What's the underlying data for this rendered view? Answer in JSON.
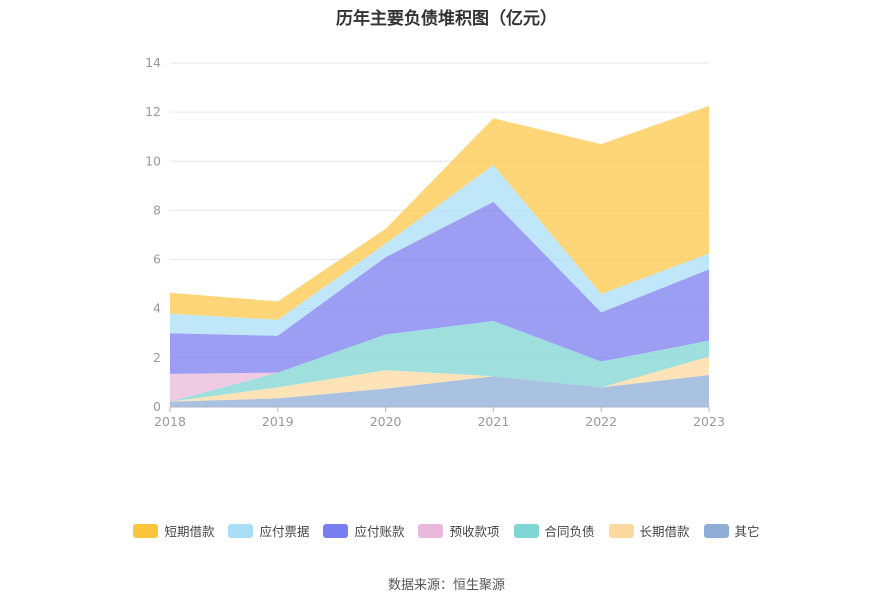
{
  "chart_data": {
    "type": "area",
    "stacked": true,
    "title": "历年主要负债堆积图（亿元）",
    "categories": [
      "2018",
      "2019",
      "2020",
      "2021",
      "2022",
      "2023"
    ],
    "ylim": [
      0,
      14
    ],
    "yticks": [
      "0",
      "2",
      "4",
      "6",
      "8",
      "10",
      "12",
      "14"
    ],
    "grid": true,
    "legend_position": "bottom",
    "series": [
      {
        "name": "其它",
        "color": "#8eaed8",
        "values": [
          0.22,
          0.35,
          0.75,
          1.25,
          0.8,
          1.3
        ]
      },
      {
        "name": "长期借款",
        "color": "#fdd9a0",
        "values": [
          0.0,
          0.45,
          0.75,
          0.0,
          0.0,
          0.75
        ]
      },
      {
        "name": "合同负债",
        "color": "#7fd6d4",
        "values": [
          0.0,
          0.6,
          1.45,
          2.25,
          1.05,
          0.65
        ]
      },
      {
        "name": "预收款项",
        "color": "#eab8da",
        "values": [
          1.13,
          0.0,
          0.0,
          0.0,
          0.0,
          0.0
        ]
      },
      {
        "name": "应付账款",
        "color": "#7b7ef0",
        "values": [
          1.65,
          1.5,
          3.15,
          4.85,
          2.0,
          2.9
        ]
      },
      {
        "name": "应付票据",
        "color": "#a9def7",
        "values": [
          0.8,
          0.65,
          0.55,
          1.5,
          0.75,
          0.65
        ]
      },
      {
        "name": "短期借款",
        "color": "#fdc84a",
        "values": [
          0.85,
          0.75,
          0.6,
          1.9,
          6.1,
          6.0
        ]
      }
    ]
  },
  "legend": [
    {
      "label": "短期借款",
      "color": "#fcc63c"
    },
    {
      "label": "应付票据",
      "color": "#a9def7"
    },
    {
      "label": "应付账款",
      "color": "#7b7ef0"
    },
    {
      "label": "预收款项",
      "color": "#eab8da"
    },
    {
      "label": "合同负债",
      "color": "#7fd6d4"
    },
    {
      "label": "长期借款",
      "color": "#fdd9a0"
    },
    {
      "label": "其它",
      "color": "#8eaed8"
    }
  ],
  "source": "数据来源：恒生聚源"
}
